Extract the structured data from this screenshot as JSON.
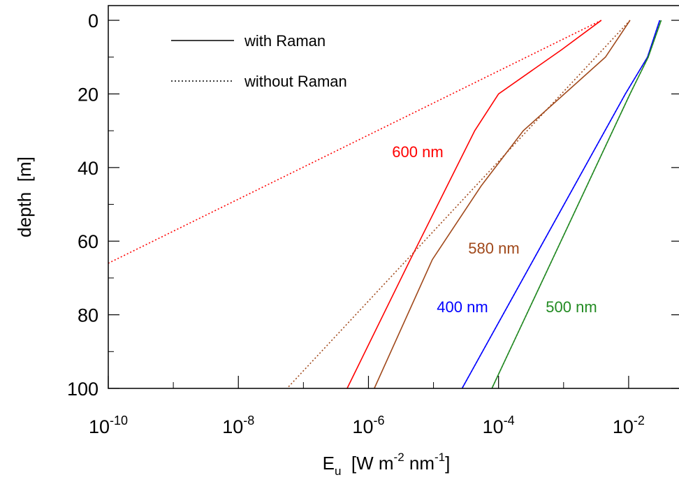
{
  "chart_data": {
    "type": "line",
    "xscale": "log",
    "y_inverted": true,
    "xlim": [
      1e-10,
      0.058
    ],
    "ylim": [
      -4,
      100
    ],
    "xticks": [
      {
        "value": 1e-10,
        "label": "10",
        "exponent": "-10"
      },
      {
        "value": 1e-08,
        "label": "10",
        "exponent": "-8"
      },
      {
        "value": 1e-06,
        "label": "10",
        "exponent": "-6"
      },
      {
        "value": 0.0001,
        "label": "10",
        "exponent": "-4"
      },
      {
        "value": 0.01,
        "label": "10",
        "exponent": "-2"
      }
    ],
    "xminorticks": [
      1e-09,
      1e-07,
      1e-05,
      0.001
    ],
    "yticks": [
      0,
      20,
      40,
      60,
      80,
      100
    ],
    "yminorticks": [
      10,
      30,
      50,
      70,
      90
    ],
    "xlabel": [
      {
        "text": "E",
        "shift": "normal"
      },
      {
        "text": "u",
        "shift": "sub"
      },
      {
        "text": "  [W m",
        "shift": "normal"
      },
      {
        "text": "-2",
        "shift": "super"
      },
      {
        "text": " nm",
        "shift": "normal"
      },
      {
        "text": "-1",
        "shift": "super"
      },
      {
        "text": "]",
        "shift": "normal"
      }
    ],
    "ylabel": "depth  [m]",
    "legend": [
      {
        "label": "with Raman",
        "style": "with_raman"
      },
      {
        "label": "without Raman",
        "style": "without_raman"
      }
    ],
    "series": [
      {
        "name": "600 nm",
        "color": "#ff0000",
        "with_raman": {
          "x": [
            0.0038,
            0.00093,
            0.0001,
            4.3e-05,
            4.4e-06,
            4.7e-07
          ],
          "y": [
            0,
            8,
            20,
            30,
            65,
            100
          ]
        },
        "without_raman": {
          "x": [
            0.0038,
            1e-10
          ],
          "y": [
            0,
            66
          ]
        }
      },
      {
        "name": "580 nm",
        "color": "#a0481a",
        "with_raman": {
          "x": [
            0.0105,
            0.0044,
            0.00024,
            5.4e-05,
            9.6e-06,
            1.23e-06
          ],
          "y": [
            0,
            10,
            30,
            45,
            65,
            100
          ]
        },
        "without_raman": {
          "x": [
            0.0105,
            5.6e-08
          ],
          "y": [
            0,
            100
          ]
        }
      },
      {
        "name": "400 nm",
        "color": "#0000ff",
        "with_raman": {
          "x": [
            0.03,
            0.0195,
            0.0089,
            2.75e-05
          ],
          "y": [
            0,
            10,
            20,
            100
          ]
        },
        "without_raman": {
          "x": [
            0.03,
            0.0195,
            0.0089,
            2.75e-05
          ],
          "y": [
            0,
            10,
            20,
            100
          ]
        }
      },
      {
        "name": "500 nm",
        "color": "#228b22",
        "with_raman": {
          "x": [
            0.0316,
            0.02,
            0.0105,
            7.9e-05
          ],
          "y": [
            0,
            10,
            20,
            100
          ]
        },
        "without_raman": {
          "x": [
            0.0316,
            0.02,
            0.0105,
            7.9e-05
          ],
          "y": [
            0,
            10,
            20,
            100
          ]
        }
      }
    ]
  }
}
